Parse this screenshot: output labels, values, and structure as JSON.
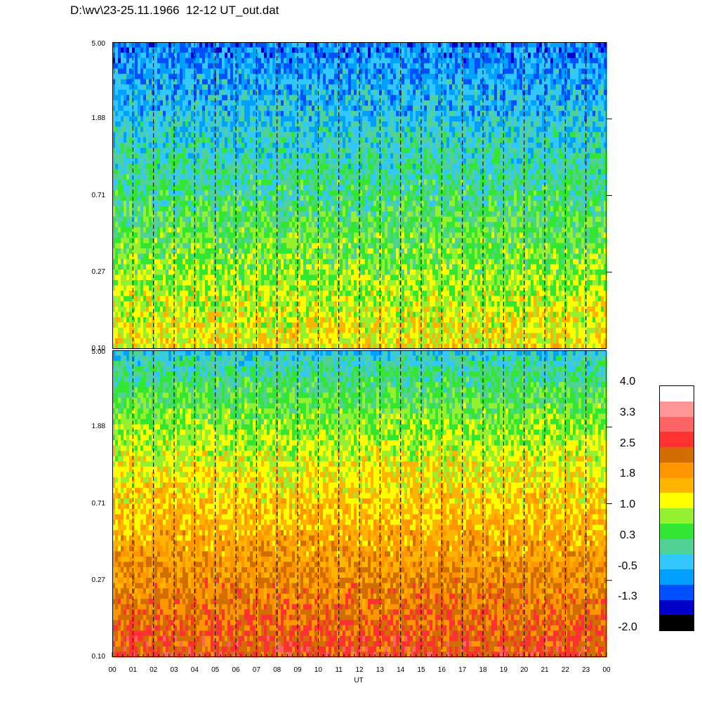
{
  "title": "D:\\wv\\23-25.11.1966  12-12 UT_out.dat",
  "chart_data": {
    "type": "heatmap",
    "xlabel": "UT",
    "x_ticks": [
      "00",
      "01",
      "02",
      "03",
      "04",
      "05",
      "06",
      "07",
      "08",
      "09",
      "10",
      "11",
      "12",
      "13",
      "14",
      "15",
      "16",
      "17",
      "18",
      "19",
      "20",
      "21",
      "22",
      "23",
      "00"
    ],
    "y_scale": "log",
    "panels": [
      {
        "name": "top",
        "ylim": [
          0.1,
          5.0
        ],
        "y_ticks": [
          "0.10",
          "0.27",
          "0.71",
          "1.88",
          "5.00"
        ],
        "dominant_colors": {
          "low_y": "#ffff00",
          "mid_y": "#96f032",
          "high_y": "#32c8ff"
        }
      },
      {
        "name": "bottom",
        "ylim": [
          0.1,
          5.0
        ],
        "y_ticks": [
          "0.10",
          "0.27",
          "0.71",
          "1.88",
          "5.00"
        ],
        "dominant_colors": {
          "low_y": "#ff3232",
          "mid_y": "#ffb400",
          "high_y": "#96f032"
        }
      }
    ],
    "colorbar": {
      "labels": [
        "4.0",
        "3.3",
        "2.5",
        "1.8",
        "1.0",
        "0.3",
        "-0.5",
        "-1.3",
        "-2.0"
      ],
      "colors": [
        "#ffffff",
        "#ff9696",
        "#ff6464",
        "#ff3232",
        "#d26e00",
        "#ff9600",
        "#ffb400",
        "#ffff00",
        "#96f032",
        "#32e632",
        "#50d296",
        "#32c8ff",
        "#00a0ff",
        "#0050ff",
        "#0000c8",
        "#000000"
      ]
    }
  }
}
